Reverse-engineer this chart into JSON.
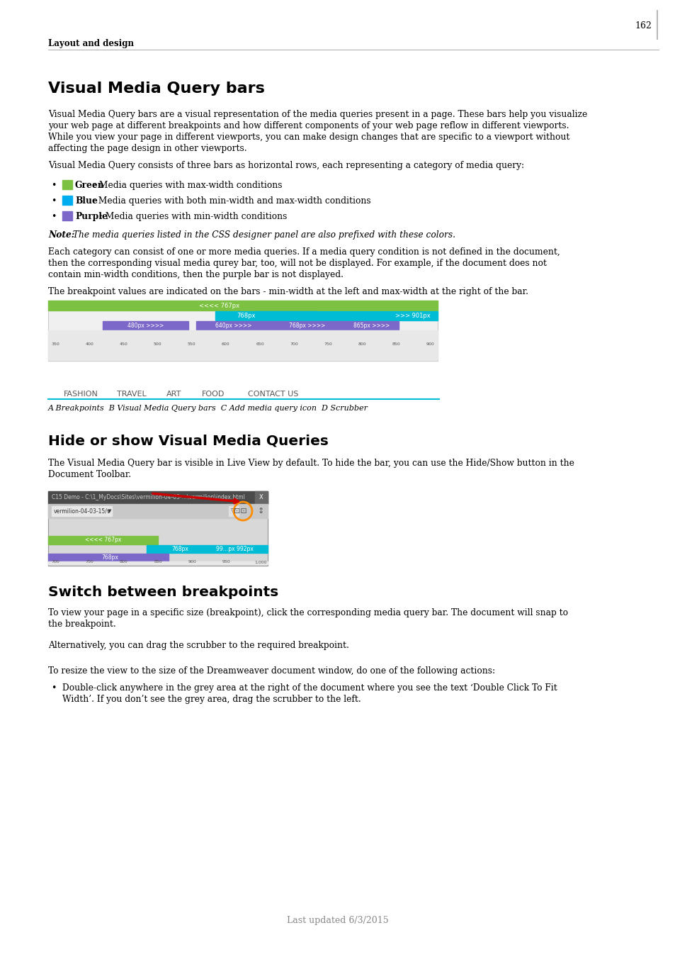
{
  "page_number": "162",
  "section_label": "Layout and design",
  "title1": "Visual Media Query bars",
  "body1": "Visual Media Query bars are a visual representation of the media queries present in a page. These bars help you visualize\nyour web page at different breakpoints and how different components of your web page reflow in different viewports.\nWhile you view your page in different viewports, you can make design changes that are specific to a viewport without\naffecting the page design in other viewports.",
  "body2": "Visual Media Query consists of three bars as horizontal rows, each representing a category of media query:",
  "bullets": [
    {
      "color": "#7dc143",
      "label": "Green",
      "text": ": Media queries with max-width conditions"
    },
    {
      "color": "#00adef",
      "label": "Blue",
      "text": " : Media queries with both min-width and max-width conditions"
    },
    {
      "color": "#7b68c8",
      "label": "Purple",
      "text": " : Media queries with min-width conditions"
    }
  ],
  "note": "Note: The media queries listed in the CSS designer panel are also prefixed with these colors.",
  "body3": "Each category can consist of one or more media queries. If a media query condition is not defined in the document,\nthen the corresponding visual media qurey bar, too, will not be displayed. For example, if the document does not\ncontain min-width conditions, then the purple bar is not displayed.",
  "body4": "The breakpoint values are indicated on the bars - min-width at the left and max-width at the right of the bar.",
  "caption1": "A Breakpoints  B Visual Media Query bars  C Add media query icon  D Scrubber",
  "title2": "Hide or show Visual Media Queries",
  "body5": "The Visual Media Query bar is visible in Live View by default. To hide the bar, you can use the Hide/Show button in the\nDocument Toolbar.",
  "title3": "Switch between breakpoints",
  "body6": "To view your page in a specific size (breakpoint), click the corresponding media query bar. The document will snap to\nthe breakpoint.",
  "body7": "Alternatively, you can drag the scrubber to the required breakpoint.",
  "body8": "To resize the view to the size of the Dreamweaver document window, do one of the following actions:",
  "bullet2": "Double-click anywhere in the grey area at the right of the document where you see the text ‘Double Click To Fit\nWidth’. If you don’t see the grey area, drag the scrubber to the left.",
  "footer": "Last updated 6/3/2015",
  "bg_color": "#ffffff",
  "text_color": "#000000",
  "section_color": "#333333"
}
